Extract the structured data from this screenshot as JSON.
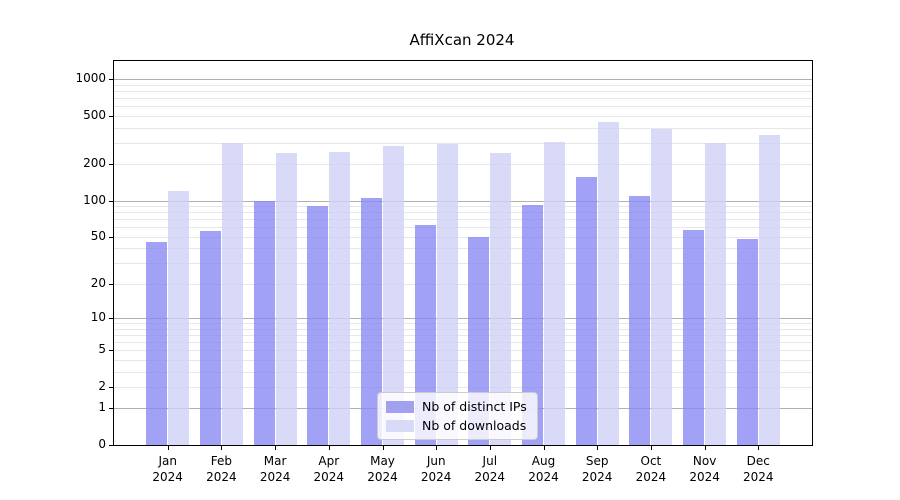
{
  "title": "AffiXcan 2024",
  "chart_data": {
    "type": "bar",
    "title": "AffiXcan 2024",
    "xlabel": "",
    "ylabel": "",
    "y_scale": "log10(1+x)",
    "categories": [
      "Jan",
      "Feb",
      "Mar",
      "Apr",
      "May",
      "Jun",
      "Jul",
      "Aug",
      "Sep",
      "Oct",
      "Nov",
      "Dec"
    ],
    "category_year": "2024",
    "series": [
      {
        "name": "Nb of distinct IPs",
        "color": "#a1a1f0",
        "fill": "rgba(138,138,242,0.8)",
        "values": [
          45,
          56,
          99,
          90,
          105,
          63,
          50,
          93,
          158,
          110,
          57,
          48
        ]
      },
      {
        "name": "Nb of downloads",
        "color": "#d9d9f8",
        "fill": "rgba(208,208,246,0.8)",
        "values": [
          120,
          300,
          250,
          252,
          285,
          295,
          250,
          305,
          450,
          390,
          300,
          350
        ]
      }
    ],
    "y_ticks": [
      0,
      1,
      2,
      5,
      10,
      20,
      50,
      100,
      200,
      500,
      1000
    ],
    "major_gridlines": [
      1,
      10,
      100,
      1000
    ],
    "minor_gridlines": [
      2,
      3,
      4,
      5,
      6,
      7,
      8,
      9,
      20,
      30,
      40,
      50,
      60,
      70,
      80,
      90,
      200,
      300,
      400,
      500,
      600,
      700,
      800,
      900
    ],
    "legend_position": "lower center",
    "grid": "on"
  },
  "colors": {
    "major_grid": "#b0b0b0",
    "minor_grid": "#e7e7e7",
    "spine": "#000000",
    "text": "#000000",
    "legend_border": "#cccccc",
    "legend_bg": "rgba(255,255,255,0.8)"
  }
}
